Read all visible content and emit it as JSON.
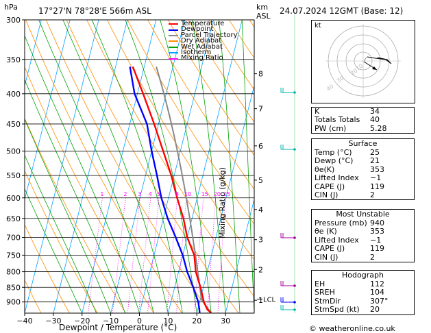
{
  "header": {
    "location": "17°27'N  78°28'E  566m  ASL",
    "datetime": "24.07.2024  12GMT  (Base: 12)",
    "hpa_label": "hPa",
    "km_label": "km",
    "asl_label": "ASL",
    "mixing_ratio_label": "Mixing Ratio (g/kg)",
    "x_label": "Dewpoint / Temperature (°C)",
    "copyright": "© weatheronline.co.uk",
    "hodo_kt": "kt"
  },
  "legend": [
    {
      "label": "Temperature",
      "color": "#ff0000"
    },
    {
      "label": "Dewpoint",
      "color": "#0000ff"
    },
    {
      "label": "Parcel Trajectory",
      "color": "#888888"
    },
    {
      "label": "Dry Adiabat",
      "color": "#ff8c00"
    },
    {
      "label": "Wet Adiabat",
      "color": "#00a000"
    },
    {
      "label": "Isotherm",
      "color": "#00a0ff"
    },
    {
      "label": "Mixing Ratio",
      "color": "#ff00ff"
    }
  ],
  "colors": {
    "temperature": "#ff0000",
    "dewpoint": "#0000ff",
    "parcel": "#888888",
    "dry_adiabat": "#ff8c00",
    "wet_adiabat": "#00a000",
    "isotherm": "#00a0ff",
    "mixing_ratio": "#ff00ff",
    "wind_barb": "#00b0b0"
  },
  "chart_data": {
    "type": "line",
    "pressure_levels": [
      300,
      350,
      400,
      450,
      500,
      550,
      600,
      650,
      700,
      750,
      800,
      850,
      900
    ],
    "pressure_tick_labels": [
      "300",
      "350",
      "400",
      "450",
      "500",
      "550",
      "600",
      "650",
      "700",
      "750",
      "800",
      "850",
      "900"
    ],
    "x_ticks": [
      -40,
      -30,
      -20,
      -10,
      0,
      10,
      20,
      30
    ],
    "x_tick_labels": [
      "−40",
      "−30",
      "−20",
      "−10",
      "0",
      "10",
      "20",
      "30"
    ],
    "xlim": [
      -40,
      40
    ],
    "ylim": [
      940,
      300
    ],
    "km_ticks": [
      {
        "label": "8",
        "p": 370
      },
      {
        "label": "7",
        "p": 424
      },
      {
        "label": "6",
        "p": 490
      },
      {
        "label": "5",
        "p": 560
      },
      {
        "label": "4",
        "p": 628
      },
      {
        "label": "3",
        "p": 706
      },
      {
        "label": "2",
        "p": 793
      },
      {
        "label": "1",
        "p": 894
      }
    ],
    "lcl": {
      "label": "LCL",
      "p": 890
    },
    "mixing_ratio_values": [
      {
        "label": "1",
        "value": 1
      },
      {
        "label": "2",
        "value": 2
      },
      {
        "label": "3",
        "value": 3
      },
      {
        "label": "4",
        "value": 4
      },
      {
        "label": "5",
        "value": 5
      },
      {
        "label": "8",
        "value": 8
      },
      {
        "label": "10",
        "value": 10
      },
      {
        "label": "15",
        "value": 15
      },
      {
        "label": "20",
        "value": 20
      },
      {
        "label": "25",
        "value": 25
      }
    ],
    "series": [
      {
        "name": "Temperature",
        "points": [
          {
            "p": 940,
            "t": 25
          },
          {
            "p": 925,
            "t": 23.2
          },
          {
            "p": 900,
            "t": 21.5
          },
          {
            "p": 850,
            "t": 19
          },
          {
            "p": 800,
            "t": 16
          },
          {
            "p": 750,
            "t": 14
          },
          {
            "p": 700,
            "t": 10
          },
          {
            "p": 650,
            "t": 7
          },
          {
            "p": 600,
            "t": 3
          },
          {
            "p": 550,
            "t": -1
          },
          {
            "p": 500,
            "t": -6
          },
          {
            "p": 450,
            "t": -11.5
          },
          {
            "p": 400,
            "t": -18
          },
          {
            "p": 360,
            "t": -24
          }
        ]
      },
      {
        "name": "Dewpoint",
        "points": [
          {
            "p": 940,
            "t": 21
          },
          {
            "p": 925,
            "t": 20.5
          },
          {
            "p": 900,
            "t": 19.5
          },
          {
            "p": 850,
            "t": 16.5
          },
          {
            "p": 800,
            "t": 13
          },
          {
            "p": 750,
            "t": 10
          },
          {
            "p": 700,
            "t": 6
          },
          {
            "p": 650,
            "t": 1.5
          },
          {
            "p": 600,
            "t": -2.5
          },
          {
            "p": 550,
            "t": -6
          },
          {
            "p": 500,
            "t": -10
          },
          {
            "p": 450,
            "t": -14
          },
          {
            "p": 400,
            "t": -21
          },
          {
            "p": 360,
            "t": -25
          }
        ]
      }
    ]
  },
  "hodograph": {
    "ring_labels": [
      "10",
      "20",
      "30",
      "40"
    ]
  },
  "indices": [
    {
      "label": "K",
      "value": "34"
    },
    {
      "label": "Totals Totals",
      "value": "40"
    },
    {
      "label": "PW (cm)",
      "value": "5.28"
    }
  ],
  "surface": {
    "title": "Surface",
    "rows": [
      {
        "label": "Temp (°C)",
        "value": "25"
      },
      {
        "label": "Dewp (°C)",
        "value": "21"
      },
      {
        "label": "θe(K)",
        "value": "353"
      },
      {
        "label": "Lifted Index",
        "value": "−1"
      },
      {
        "label": "CAPE (J)",
        "value": "119"
      },
      {
        "label": "CIN (J)",
        "value": "2"
      }
    ]
  },
  "most_unstable": {
    "title": "Most Unstable",
    "rows": [
      {
        "label": "Pressure (mb)",
        "value": "940"
      },
      {
        "label": "θe (K)",
        "value": "353"
      },
      {
        "label": "Lifted Index",
        "value": "−1"
      },
      {
        "label": "CAPE (J)",
        "value": "119"
      },
      {
        "label": "CIN (J)",
        "value": "2"
      }
    ]
  },
  "hodograph_table": {
    "title": "Hodograph",
    "rows": [
      {
        "label": "EH",
        "value": "112"
      },
      {
        "label": "SREH",
        "value": "104"
      },
      {
        "label": "StmDir",
        "value": "307°"
      },
      {
        "label": "StmSpd (kt)",
        "value": "20"
      }
    ]
  }
}
